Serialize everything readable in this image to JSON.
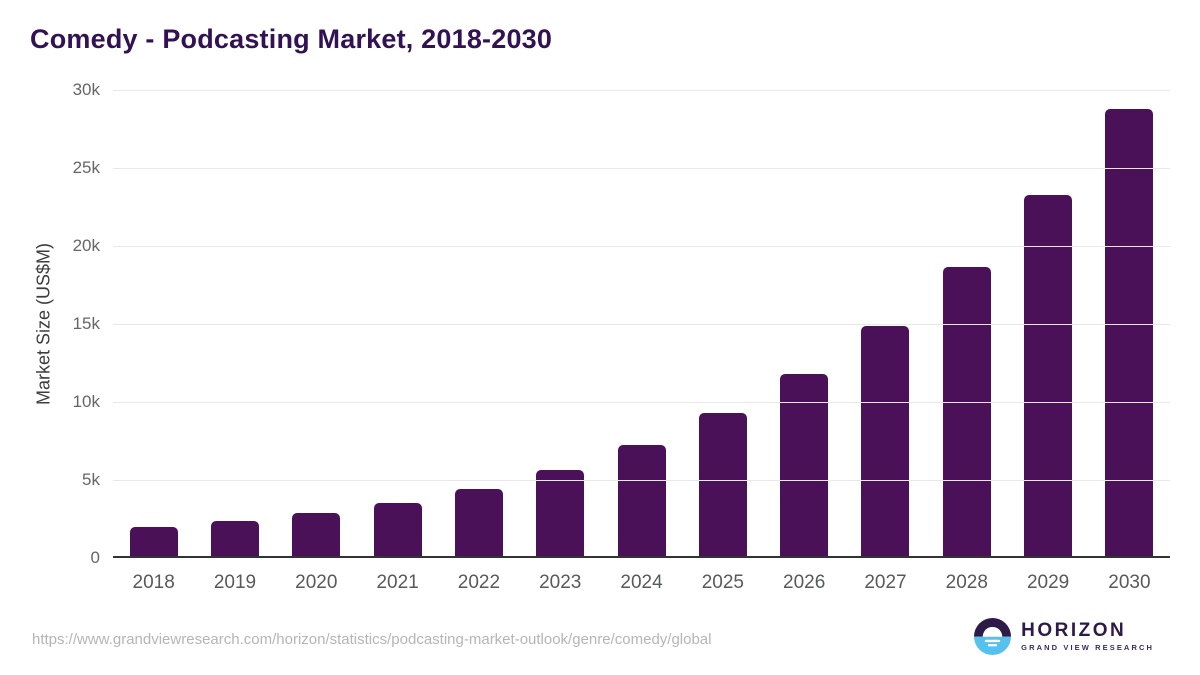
{
  "title": "Comedy - Podcasting Market, 2018-2030",
  "source_url": "https://www.grandviewresearch.com/horizon/statistics/podcasting-market-outlook/genre/comedy/global",
  "logo": {
    "name": "HORIZON",
    "subtitle": "GRAND VIEW RESEARCH"
  },
  "colors": {
    "bar": "#4a1158",
    "title": "#321253",
    "axis": "#333333",
    "gridline": "#e8e8e8",
    "y_tick_label": "#666666",
    "x_tick_label": "#58595b",
    "source_url": "#b5b5b5",
    "logo_dark": "#2e1a47",
    "logo_blue": "#56c1ec"
  },
  "chart_data": {
    "type": "bar",
    "title": "Comedy - Podcasting Market, 2018-2030",
    "categories": [
      "2018",
      "2019",
      "2020",
      "2021",
      "2022",
      "2023",
      "2024",
      "2025",
      "2026",
      "2027",
      "2028",
      "2029",
      "2030"
    ],
    "values": [
      1850,
      2240,
      2730,
      3430,
      4330,
      5540,
      7120,
      9170,
      11680,
      14720,
      18550,
      23130,
      28650
    ],
    "xlabel": "",
    "ylabel": "Market Size (US$M)",
    "ylim": [
      0,
      30000
    ],
    "ytick_values": [
      0,
      5000,
      10000,
      15000,
      20000,
      25000,
      30000
    ],
    "ytick_labels": [
      "0",
      "5k",
      "10k",
      "15k",
      "20k",
      "25k",
      "30k"
    ],
    "grid": true,
    "legend": false,
    "bar_color": "#4a1158"
  }
}
